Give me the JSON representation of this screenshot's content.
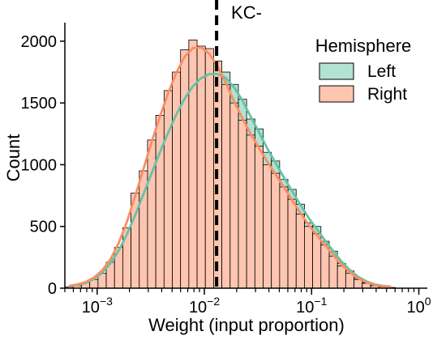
{
  "chart_data": {
    "type": "histogram",
    "title": "KC-",
    "xlabel": "Weight (input proportion)",
    "ylabel": "Count",
    "x_scale": "log",
    "xlim": [
      0.0005,
      1.2
    ],
    "ylim": [
      0,
      2150
    ],
    "x_ticks": [
      {
        "value": 0.001,
        "base": "10",
        "exp": "−3"
      },
      {
        "value": 0.01,
        "base": "10",
        "exp": "−2"
      },
      {
        "value": 0.1,
        "base": "10",
        "exp": "−1"
      },
      {
        "value": 1,
        "base": "10",
        "exp": "0"
      }
    ],
    "y_ticks": [
      {
        "value": 0,
        "label": "0"
      },
      {
        "value": 500,
        "label": "500"
      },
      {
        "value": 1000,
        "label": "1000"
      },
      {
        "value": 1500,
        "label": "1500"
      },
      {
        "value": 2000,
        "label": "2000"
      }
    ],
    "bin_log_start": -3.3,
    "bin_log_width": 0.077,
    "legend": {
      "title": "Hemisphere",
      "position": "top-right"
    },
    "series": [
      {
        "name": "Left",
        "color": "#66c2a5",
        "counts": [
          5,
          15,
          40,
          60,
          100,
          190,
          280,
          420,
          580,
          760,
          940,
          1110,
          1250,
          1440,
          1550,
          1650,
          1740,
          1750,
          1740,
          1750,
          1650,
          1530,
          1370,
          1290,
          1100,
          1030,
          880,
          800,
          680,
          530,
          500,
          380,
          300,
          200,
          140,
          80,
          45,
          25,
          15,
          5
        ]
      },
      {
        "name": "Right",
        "color": "#fc8d62",
        "counts": [
          10,
          20,
          45,
          70,
          120,
          210,
          330,
          490,
          770,
          950,
          1200,
          1400,
          1600,
          1750,
          1930,
          2010,
          1960,
          1940,
          1840,
          1650,
          1500,
          1360,
          1240,
          1150,
          1000,
          930,
          820,
          720,
          600,
          500,
          440,
          350,
          260,
          180,
          120,
          70,
          40,
          20,
          10,
          5
        ]
      }
    ],
    "vline": {
      "x": 0.013,
      "style": "dashed",
      "color": "#000000"
    }
  }
}
